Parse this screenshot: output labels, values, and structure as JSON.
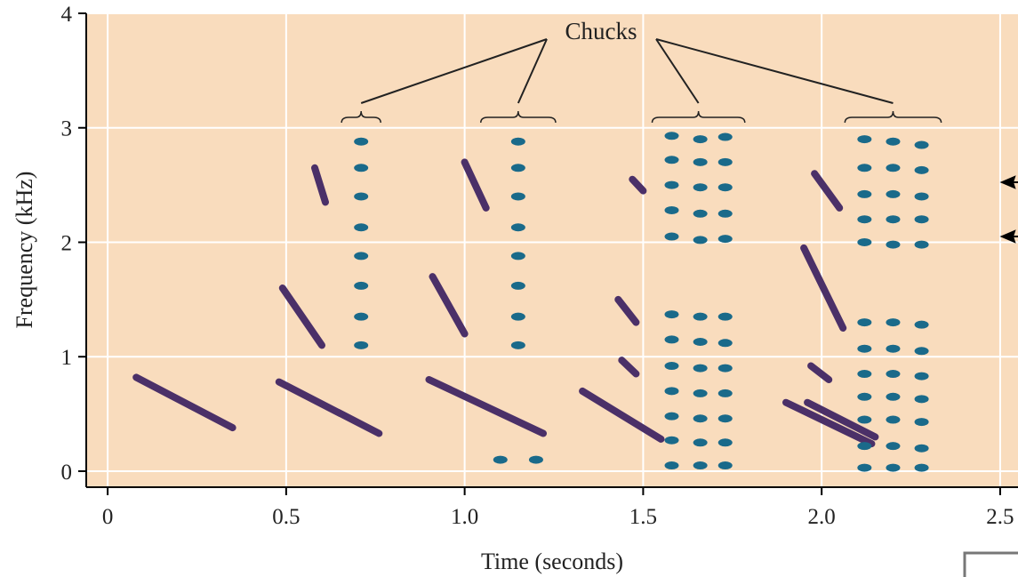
{
  "chart_data": {
    "type": "spectrogram",
    "xlabel": "Time (seconds)",
    "ylabel": "Frequency (kHz)",
    "annotation": "Chucks",
    "xlim": [
      -0.06,
      2.55
    ],
    "ylim": [
      -0.14,
      4
    ],
    "xticks": [
      0,
      0.5,
      {
        "value": 1,
        "label": "1.0"
      },
      1.5,
      {
        "value": 2,
        "label": "2.0"
      },
      2.5
    ],
    "yticks": [
      0,
      1,
      2,
      3,
      4
    ],
    "grid": true,
    "background": "#f9dcbd",
    "series": [
      {
        "style": "sweep",
        "color": "#4b3068",
        "x": [
          0.08,
          0.35,
          null,
          0.48,
          0.76,
          null,
          0.49,
          0.6,
          null,
          0.58,
          0.61,
          null,
          0.9,
          1.22,
          null,
          0.91,
          1.0,
          null,
          1.0,
          1.06,
          null,
          1.33,
          1.55,
          null,
          1.43,
          1.48,
          null,
          1.44,
          1.48,
          null,
          1.47,
          1.5,
          null,
          1.9,
          2.14,
          null,
          1.96,
          2.15,
          null,
          1.98,
          2.05,
          null,
          1.95,
          2.06,
          null,
          1.97,
          2.02
        ],
        "values": [
          0.82,
          0.38,
          null,
          0.78,
          0.33,
          null,
          1.6,
          1.1,
          null,
          2.65,
          2.35,
          null,
          0.8,
          0.33,
          null,
          1.7,
          1.2,
          null,
          2.7,
          2.3,
          null,
          0.7,
          0.28,
          null,
          1.5,
          1.3,
          null,
          0.97,
          0.85,
          null,
          2.55,
          2.45,
          null,
          0.6,
          0.24,
          null,
          0.6,
          0.3,
          null,
          2.6,
          2.3,
          null,
          1.95,
          1.25,
          null,
          0.92,
          0.8
        ]
      },
      {
        "style": "chuck",
        "color": "#1a6a8a",
        "x": [
          0.71,
          0.71,
          0.71,
          0.71,
          0.71,
          0.71,
          0.71,
          0.71,
          1.15,
          1.15,
          1.15,
          1.15,
          1.15,
          1.15,
          1.15,
          1.15,
          1.1,
          1.2,
          1.58,
          1.58,
          1.58,
          1.58,
          1.58,
          1.58,
          1.58,
          1.58,
          1.58,
          1.58,
          1.58,
          1.58,
          1.66,
          1.66,
          1.66,
          1.66,
          1.66,
          1.66,
          1.66,
          1.66,
          1.66,
          1.66,
          1.66,
          1.66,
          1.73,
          1.73,
          1.73,
          1.73,
          1.73,
          1.73,
          1.73,
          1.73,
          1.73,
          1.73,
          1.73,
          1.73,
          2.12,
          2.12,
          2.12,
          2.12,
          2.12,
          2.12,
          2.12,
          2.12,
          2.12,
          2.12,
          2.12,
          2.12,
          2.2,
          2.2,
          2.2,
          2.2,
          2.2,
          2.2,
          2.2,
          2.2,
          2.2,
          2.2,
          2.2,
          2.2,
          2.28,
          2.28,
          2.28,
          2.28,
          2.28,
          2.28,
          2.28,
          2.28,
          2.28,
          2.28,
          2.28,
          2.28
        ],
        "values": [
          2.88,
          2.65,
          2.4,
          2.13,
          1.88,
          1.62,
          1.35,
          1.1,
          2.88,
          2.65,
          2.4,
          2.13,
          1.88,
          1.62,
          1.35,
          1.1,
          0.1,
          0.1,
          2.93,
          2.72,
          2.5,
          2.28,
          2.05,
          1.37,
          1.15,
          0.92,
          0.7,
          0.48,
          0.27,
          0.05,
          2.9,
          2.7,
          2.48,
          2.25,
          2.02,
          1.35,
          1.13,
          0.9,
          0.68,
          0.46,
          0.25,
          0.05,
          2.92,
          2.7,
          2.48,
          2.25,
          2.03,
          1.35,
          1.12,
          0.9,
          0.68,
          0.46,
          0.25,
          0.05,
          2.9,
          2.65,
          2.42,
          2.2,
          2.0,
          1.3,
          1.07,
          0.85,
          0.65,
          0.45,
          0.22,
          0.03,
          2.88,
          2.65,
          2.42,
          2.2,
          1.98,
          1.3,
          1.07,
          0.85,
          0.65,
          0.45,
          0.22,
          0.03,
          2.85,
          2.63,
          2.4,
          2.2,
          1.98,
          1.28,
          1.05,
          0.83,
          0.63,
          0.43,
          0.2,
          0.03
        ]
      }
    ]
  }
}
